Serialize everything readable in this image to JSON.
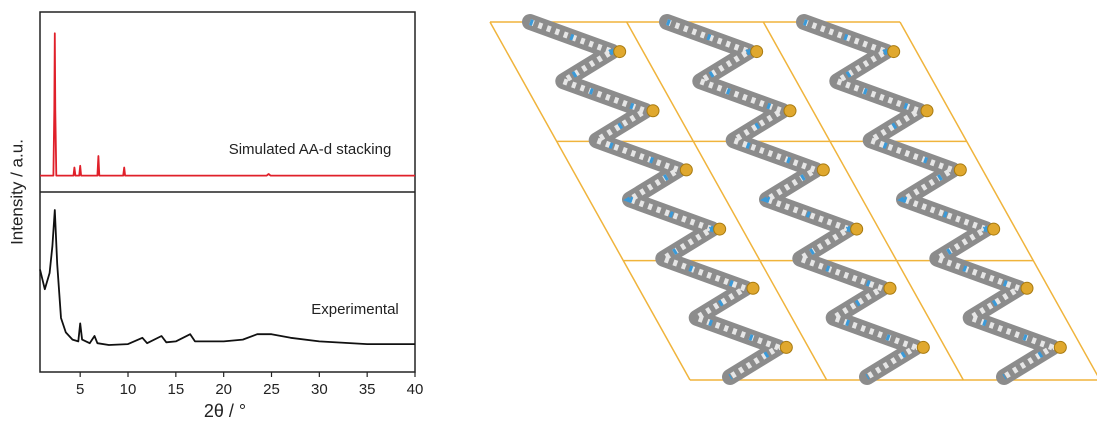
{
  "chart_data": [
    {
      "type": "line",
      "annotation": "Simulated AA-d stacking",
      "ylabel": "Intensity / a.u.",
      "color": "#e0202a",
      "xlim": [
        0.8,
        40
      ],
      "ylim": [
        -10,
        100
      ],
      "x": [
        0.8,
        2.2,
        2.3,
        2.35,
        2.4,
        2.5,
        4.3,
        4.4,
        4.5,
        4.9,
        5.0,
        5.1,
        6.8,
        6.9,
        7.0,
        9.5,
        9.6,
        9.7,
        24.5,
        24.7,
        24.9,
        40
      ],
      "values": [
        0,
        0,
        40,
        87,
        40,
        0,
        0,
        5,
        0,
        0,
        6,
        0,
        0,
        12,
        0,
        0,
        5,
        0,
        0,
        1,
        0,
        0
      ]
    },
    {
      "type": "line",
      "annotation": "Experimental",
      "xlabel": "2θ / °",
      "color": "#111111",
      "xlim": [
        0.8,
        40
      ],
      "ylim": [
        0,
        100
      ],
      "xticks": [
        5,
        10,
        15,
        20,
        25,
        30,
        35,
        40
      ],
      "x": [
        0.8,
        1.3,
        1.8,
        2.1,
        2.35,
        2.6,
        3.0,
        3.5,
        4.2,
        4.8,
        5.0,
        5.2,
        6.0,
        6.5,
        6.8,
        8,
        10,
        11.5,
        12,
        13.5,
        14,
        15,
        16.5,
        17,
        20,
        22,
        23.5,
        25,
        27,
        30,
        35,
        40
      ],
      "values": [
        57,
        46,
        55,
        70,
        90,
        60,
        30,
        22,
        18,
        17,
        27,
        18,
        16,
        20,
        16,
        15,
        15.5,
        19,
        16,
        20,
        16.5,
        17,
        21,
        17,
        17,
        18,
        21,
        21,
        19,
        17,
        15.5,
        15.5
      ]
    }
  ]
}
